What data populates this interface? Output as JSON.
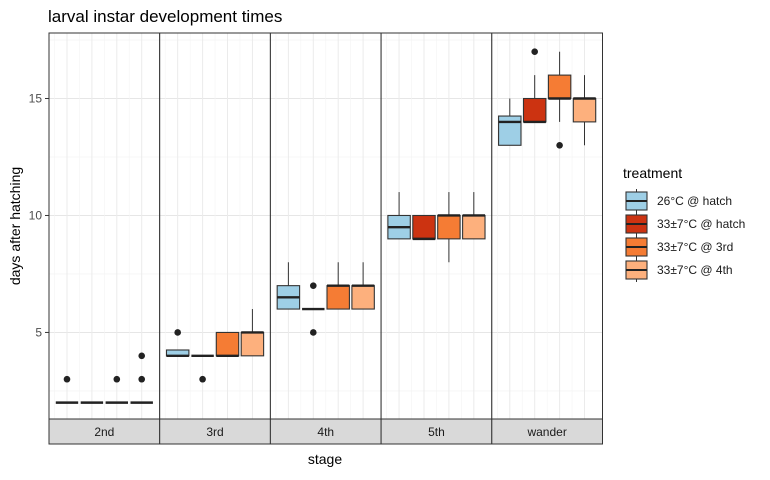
{
  "chart_data": {
    "type": "boxplot",
    "title": "larval instar development times",
    "xlabel": "stage",
    "ylabel": "days after hatching",
    "ylim": [
      1.3,
      17.8
    ],
    "yticks": [
      5,
      10,
      15
    ],
    "facets": [
      "2nd",
      "3rd",
      "4th",
      "5th",
      "wander"
    ],
    "legend": {
      "title": "treatment",
      "placement": "right",
      "entries": [
        "26°C @ hatch",
        "33±7°C @ hatch",
        "33±7°C @ 3rd",
        "33±7°C @ 4th"
      ]
    },
    "series": [
      {
        "name": "26°C @ hatch",
        "color": "#9ECFE6",
        "boxes": [
          {
            "stage": "2nd",
            "min": 2,
            "q1": 2,
            "median": 2,
            "q3": 2,
            "max": 2,
            "outliers": [
              3
            ]
          },
          {
            "stage": "3rd",
            "min": 4,
            "q1": 4,
            "median": 4,
            "q3": 4.25,
            "max": 4.25,
            "outliers": [
              5
            ]
          },
          {
            "stage": "4th",
            "min": 6,
            "q1": 6,
            "median": 6.5,
            "q3": 7,
            "max": 8,
            "outliers": []
          },
          {
            "stage": "5th",
            "min": 9,
            "q1": 9,
            "median": 9.5,
            "q3": 10,
            "max": 11,
            "outliers": []
          },
          {
            "stage": "wander",
            "min": 13,
            "q1": 13,
            "median": 14,
            "q3": 14.25,
            "max": 15,
            "outliers": []
          }
        ]
      },
      {
        "name": "33±7°C @ hatch",
        "color": "#CC3311",
        "boxes": [
          {
            "stage": "2nd",
            "min": 2,
            "q1": 2,
            "median": 2,
            "q3": 2,
            "max": 2,
            "outliers": []
          },
          {
            "stage": "3rd",
            "min": 4,
            "q1": 4,
            "median": 4,
            "q3": 4,
            "max": 4,
            "outliers": [
              3
            ]
          },
          {
            "stage": "4th",
            "min": 6,
            "q1": 6,
            "median": 6,
            "q3": 6,
            "max": 6,
            "outliers": [
              5,
              7
            ]
          },
          {
            "stage": "5th",
            "min": 9,
            "q1": 9,
            "median": 9,
            "q3": 10,
            "max": 10,
            "outliers": []
          },
          {
            "stage": "wander",
            "min": 14,
            "q1": 14,
            "median": 14,
            "q3": 15,
            "max": 16,
            "outliers": [
              17
            ]
          }
        ]
      },
      {
        "name": "33±7°C @ 3rd",
        "color": "#F57C34",
        "boxes": [
          {
            "stage": "2nd",
            "min": 2,
            "q1": 2,
            "median": 2,
            "q3": 2,
            "max": 2,
            "outliers": [
              3
            ]
          },
          {
            "stage": "3rd",
            "min": 4,
            "q1": 4,
            "median": 4,
            "q3": 5,
            "max": 5,
            "outliers": []
          },
          {
            "stage": "4th",
            "min": 6,
            "q1": 6,
            "median": 7,
            "q3": 7,
            "max": 8,
            "outliers": []
          },
          {
            "stage": "5th",
            "min": 8,
            "q1": 9,
            "median": 10,
            "q3": 10,
            "max": 11,
            "outliers": []
          },
          {
            "stage": "wander",
            "min": 14,
            "q1": 15,
            "median": 15,
            "q3": 16,
            "max": 17,
            "outliers": [
              13
            ]
          }
        ]
      },
      {
        "name": "33±7°C @ 4th",
        "color": "#FDB07D",
        "boxes": [
          {
            "stage": "2nd",
            "min": 2,
            "q1": 2,
            "median": 2,
            "q3": 2,
            "max": 2,
            "outliers": [
              3,
              4
            ]
          },
          {
            "stage": "3rd",
            "min": 4,
            "q1": 4,
            "median": 5,
            "q3": 5,
            "max": 6,
            "outliers": []
          },
          {
            "stage": "4th",
            "min": 6,
            "q1": 6,
            "median": 7,
            "q3": 7,
            "max": 8,
            "outliers": []
          },
          {
            "stage": "5th",
            "min": 9,
            "q1": 9,
            "median": 10,
            "q3": 10,
            "max": 11,
            "outliers": []
          },
          {
            "stage": "wander",
            "min": 13,
            "q1": 14,
            "median": 15,
            "q3": 15,
            "max": 16,
            "outliers": []
          }
        ]
      }
    ]
  }
}
